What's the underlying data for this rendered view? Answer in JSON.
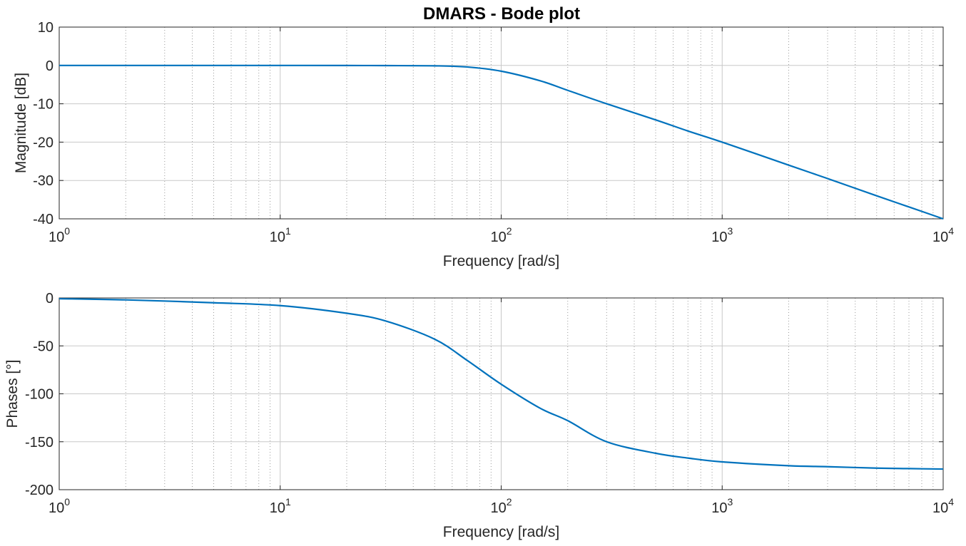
{
  "chart_data": [
    {
      "type": "line",
      "title": "DMARS - Bode plot",
      "xlabel": "Frequency [rad/s]",
      "ylabel": "Magnitude [dB]",
      "xscale": "log",
      "xlim": [
        1,
        10000
      ],
      "ylim": [
        -40,
        10
      ],
      "yticks": [
        10,
        0,
        -10,
        -20,
        -30,
        -40
      ],
      "xticks": [
        {
          "value": 1,
          "base": "10",
          "exp": "0"
        },
        {
          "value": 10,
          "base": "10",
          "exp": "1"
        },
        {
          "value": 100,
          "base": "10",
          "exp": "2"
        },
        {
          "value": 1000,
          "base": "10",
          "exp": "3"
        },
        {
          "value": 10000,
          "base": "10",
          "exp": "4"
        }
      ],
      "grid": true,
      "minor_grid": true,
      "color": "#0072BD",
      "series": [
        {
          "x": [
            1,
            2,
            5,
            10,
            20,
            30,
            50,
            70,
            100,
            150,
            200,
            300,
            500,
            700,
            1000,
            2000,
            3000,
            5000,
            7000,
            10000
          ],
          "values": [
            0,
            0,
            0,
            0,
            -0.02,
            -0.04,
            -0.1,
            -0.4,
            -1.5,
            -4,
            -6.5,
            -10,
            -14.2,
            -17.1,
            -20,
            -26,
            -29.5,
            -34,
            -36.9,
            -40
          ]
        }
      ]
    },
    {
      "type": "line",
      "title": "",
      "xlabel": "Frequency [rad/s]",
      "ylabel": "Phases [°]",
      "xscale": "log",
      "xlim": [
        1,
        10000
      ],
      "ylim": [
        -200,
        0
      ],
      "yticks": [
        0,
        -50,
        -100,
        -150,
        -200
      ],
      "xticks": [
        {
          "value": 1,
          "base": "10",
          "exp": "0"
        },
        {
          "value": 10,
          "base": "10",
          "exp": "1"
        },
        {
          "value": 100,
          "base": "10",
          "exp": "2"
        },
        {
          "value": 1000,
          "base": "10",
          "exp": "3"
        },
        {
          "value": 10000,
          "base": "10",
          "exp": "4"
        }
      ],
      "grid": true,
      "minor_grid": true,
      "color": "#0072BD",
      "series": [
        {
          "x": [
            1,
            2,
            5,
            10,
            20,
            30,
            50,
            70,
            100,
            150,
            200,
            300,
            500,
            700,
            1000,
            2000,
            3000,
            5000,
            7000,
            10000
          ],
          "values": [
            -0.8,
            -2,
            -5,
            -8,
            -16,
            -24,
            -43,
            -65,
            -90,
            -115,
            -128,
            -150,
            -162,
            -167,
            -171,
            -175,
            -176,
            -177.5,
            -178,
            -178.5
          ]
        }
      ]
    }
  ]
}
